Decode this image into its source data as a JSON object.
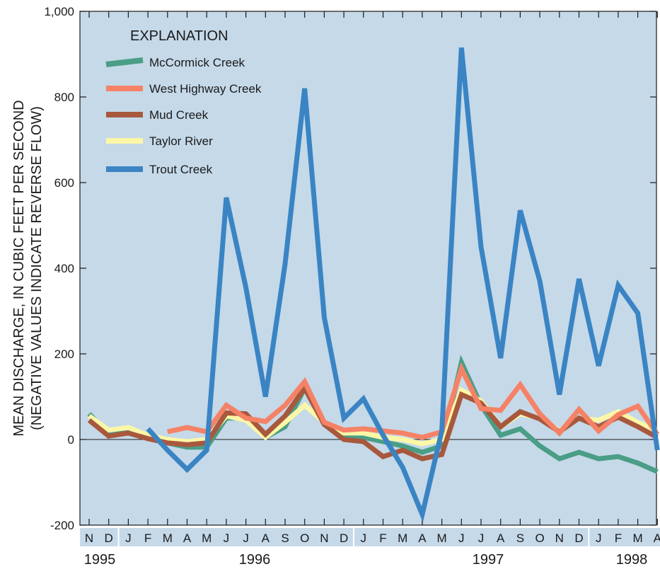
{
  "chart_data": {
    "type": "line",
    "ylabel_line1": "MEAN DISCHARGE, IN CUBIC FEET PER SECOND",
    "ylabel_line2": "(NEGATIVE VALUES INDICATE REVERSE FLOW)",
    "ylim": [
      -200,
      1000
    ],
    "yticks": [
      -200,
      0,
      200,
      400,
      600,
      800,
      1000
    ],
    "ytick_labels": [
      "-200",
      "0",
      "200",
      "400",
      "600",
      "800",
      "1,000"
    ],
    "categories": [
      "N",
      "D",
      "J",
      "F",
      "M",
      "A",
      "M",
      "J",
      "J",
      "A",
      "S",
      "O",
      "N",
      "D",
      "J",
      "F",
      "M",
      "A",
      "M",
      "J",
      "J",
      "A",
      "S",
      "O",
      "N",
      "D",
      "J",
      "F",
      "M",
      "A"
    ],
    "month_groups": [
      [
        0,
        1
      ],
      [
        2,
        13
      ],
      [
        14,
        25
      ],
      [
        26,
        29
      ]
    ],
    "years": [
      "1995",
      "1996",
      "1997",
      "1998"
    ],
    "legend_title": "EXPLANATION",
    "legend_position": "top-left",
    "background_color": "#c5d9e9",
    "zero_line": true,
    "grid": false,
    "series": [
      {
        "name": "McCormick Creek",
        "color": "#4a9e86",
        "values": [
          60,
          12,
          22,
          5,
          -8,
          -18,
          -18,
          50,
          50,
          5,
          30,
          120,
          35,
          10,
          5,
          -5,
          -15,
          -30,
          -15,
          180,
          80,
          10,
          25,
          -15,
          -45,
          -30,
          -45,
          -40,
          -55,
          -75
        ]
      },
      {
        "name": "Taylor River",
        "color": "#fbf7a7",
        "values": [
          55,
          22,
          28,
          10,
          0,
          -5,
          0,
          55,
          45,
          5,
          40,
          80,
          40,
          15,
          15,
          5,
          0,
          -10,
          0,
          115,
          90,
          30,
          60,
          50,
          20,
          50,
          45,
          65,
          40,
          20
        ]
      },
      {
        "name": "Mud Creek",
        "color": "#a8583d",
        "values": [
          45,
          8,
          15,
          2,
          -8,
          -12,
          -8,
          62,
          60,
          12,
          55,
          120,
          35,
          0,
          -5,
          -40,
          -25,
          -45,
          -35,
          105,
          85,
          30,
          65,
          48,
          18,
          50,
          30,
          52,
          30,
          5
        ]
      },
      {
        "name": "West Highway Creek",
        "color": "#f58266",
        "values": [
          null,
          null,
          null,
          null,
          18,
          28,
          18,
          80,
          50,
          42,
          80,
          135,
          40,
          22,
          25,
          20,
          15,
          5,
          18,
          165,
          72,
          68,
          128,
          60,
          15,
          70,
          20,
          58,
          78,
          12
        ]
      },
      {
        "name": "Trout Creek",
        "color": "#3a84c4",
        "values": [
          null,
          null,
          null,
          25,
          -25,
          -70,
          -25,
          565,
          355,
          100,
          410,
          820,
          285,
          50,
          95,
          10,
          -65,
          -175,
          20,
          915,
          450,
          190,
          535,
          370,
          105,
          375,
          172,
          360,
          295,
          -25
        ]
      }
    ],
    "legend_order": [
      "McCormick Creek",
      "West Highway Creek",
      "Mud Creek",
      "Taylor River",
      "Trout Creek"
    ]
  }
}
